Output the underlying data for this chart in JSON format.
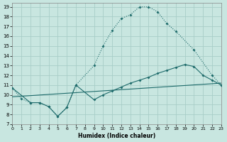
{
  "xlabel": "Humidex (Indice chaleur)",
  "bg_color": "#c8e6e0",
  "grid_color": "#a8cec8",
  "line_color": "#1e6b6b",
  "xlim": [
    0,
    23
  ],
  "ylim": [
    7,
    19.4
  ],
  "xticks": [
    0,
    1,
    2,
    3,
    4,
    5,
    6,
    7,
    8,
    9,
    10,
    11,
    12,
    13,
    14,
    15,
    16,
    17,
    18,
    19,
    20,
    21,
    22,
    23
  ],
  "yticks": [
    7,
    8,
    9,
    10,
    11,
    12,
    13,
    14,
    15,
    16,
    17,
    18,
    19
  ],
  "line1_x": [
    0,
    1,
    2,
    3,
    4,
    5,
    6,
    7,
    9,
    10,
    11,
    12,
    13,
    14,
    15,
    16,
    17,
    18,
    20,
    22,
    23
  ],
  "line1_y": [
    10.7,
    9.6,
    9.2,
    9.2,
    8.8,
    7.8,
    8.7,
    11.0,
    13.0,
    15.0,
    16.6,
    17.8,
    18.2,
    19.0,
    19.0,
    18.5,
    17.3,
    16.5,
    14.6,
    12.0,
    11.0
  ],
  "line2_x": [
    0,
    2,
    3,
    4,
    5,
    6,
    7,
    9,
    10,
    11,
    12,
    13,
    14,
    15,
    16,
    17,
    18,
    19,
    20,
    21,
    22,
    23
  ],
  "line2_y": [
    10.7,
    9.2,
    9.2,
    8.8,
    7.8,
    8.7,
    11.0,
    9.5,
    10.0,
    10.4,
    10.8,
    11.2,
    11.5,
    11.8,
    12.2,
    12.5,
    12.8,
    13.1,
    12.9,
    12.0,
    11.5,
    11.0
  ],
  "line3_x": [
    0,
    23
  ],
  "line3_y": [
    9.8,
    11.2
  ]
}
